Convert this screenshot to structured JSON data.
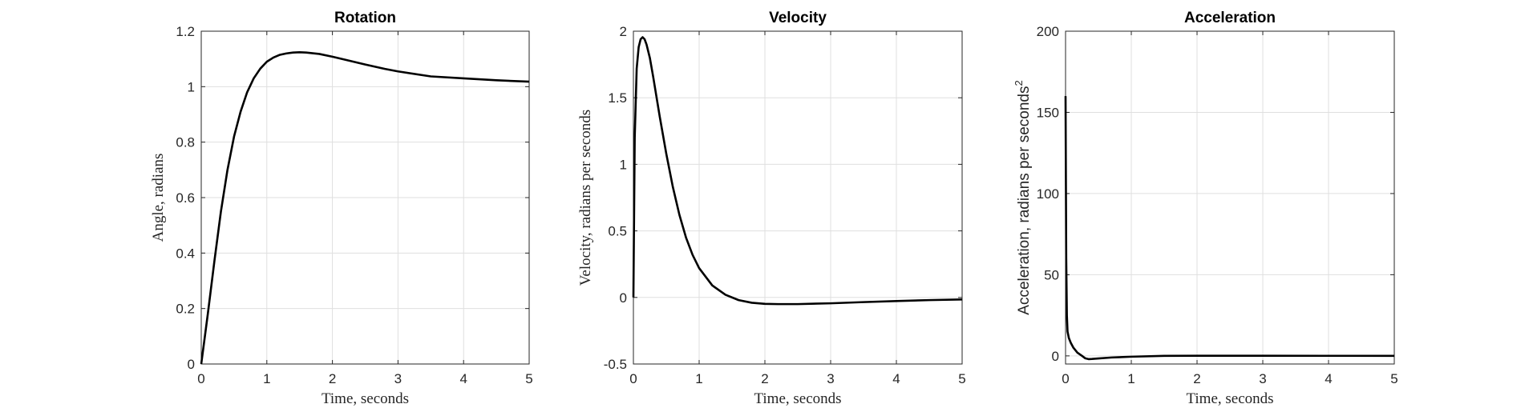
{
  "chart_data": [
    {
      "type": "line",
      "title": "Rotation",
      "xlabel": "Time, seconds",
      "ylabel": "Angle, radians",
      "xlim": [
        0,
        5
      ],
      "ylim": [
        0,
        1.2
      ],
      "xticks": [
        0,
        1,
        2,
        3,
        4,
        5
      ],
      "yticks": [
        0,
        0.2,
        0.4,
        0.6,
        0.8,
        1,
        1.2
      ],
      "xtick_labels": [
        "0",
        "1",
        "2",
        "3",
        "4",
        "5"
      ],
      "ytick_labels": [
        "0",
        "0.2",
        "0.4",
        "0.6",
        "0.8",
        "1",
        "1.2"
      ],
      "grid": true,
      "series": [
        {
          "color": "#000000",
          "x": [
            0,
            0.1,
            0.2,
            0.3,
            0.4,
            0.5,
            0.6,
            0.7,
            0.8,
            0.9,
            1.0,
            1.1,
            1.2,
            1.3,
            1.4,
            1.5,
            1.6,
            1.8,
            2.0,
            2.2,
            2.5,
            2.8,
            3.0,
            3.5,
            4.0,
            4.5,
            5.0
          ],
          "y": [
            0,
            0.18,
            0.37,
            0.55,
            0.7,
            0.82,
            0.91,
            0.98,
            1.03,
            1.065,
            1.09,
            1.105,
            1.115,
            1.12,
            1.123,
            1.124,
            1.123,
            1.118,
            1.108,
            1.097,
            1.08,
            1.064,
            1.055,
            1.037,
            1.03,
            1.023,
            1.018
          ]
        }
      ]
    },
    {
      "type": "line",
      "title": "Velocity",
      "xlabel": "Time, seconds",
      "ylabel": "Velocity, radians per seconds",
      "xlim": [
        0,
        5
      ],
      "ylim": [
        -0.5,
        2
      ],
      "xticks": [
        0,
        1,
        2,
        3,
        4,
        5
      ],
      "yticks": [
        -0.5,
        0,
        0.5,
        1,
        1.5,
        2
      ],
      "xtick_labels": [
        "0",
        "1",
        "2",
        "3",
        "4",
        "5"
      ],
      "ytick_labels": [
        "-0.5",
        "0",
        "0.5",
        "1",
        "1.5",
        "2"
      ],
      "grid": true,
      "series": [
        {
          "color": "#000000",
          "x": [
            0,
            0.02,
            0.05,
            0.08,
            0.11,
            0.14,
            0.17,
            0.2,
            0.25,
            0.3,
            0.4,
            0.5,
            0.6,
            0.7,
            0.8,
            0.9,
            1.0,
            1.2,
            1.4,
            1.6,
            1.8,
            2.0,
            2.2,
            2.5,
            3.0,
            3.5,
            4.0,
            4.5,
            5.0
          ],
          "y": [
            0,
            1.2,
            1.72,
            1.88,
            1.94,
            1.955,
            1.94,
            1.9,
            1.8,
            1.66,
            1.36,
            1.08,
            0.83,
            0.62,
            0.45,
            0.32,
            0.22,
            0.09,
            0.02,
            -0.02,
            -0.04,
            -0.048,
            -0.05,
            -0.05,
            -0.044,
            -0.035,
            -0.027,
            -0.02,
            -0.015
          ]
        }
      ]
    },
    {
      "type": "line",
      "title": "Acceleration",
      "xlabel": "Time, seconds",
      "ylabel": "Acceleration, radians per seconds",
      "ylabel_superscript": "2",
      "xlim": [
        0,
        5
      ],
      "ylim": [
        -5,
        200
      ],
      "xticks": [
        0,
        1,
        2,
        3,
        4,
        5
      ],
      "yticks": [
        0,
        50,
        100,
        150,
        200
      ],
      "xtick_labels": [
        "0",
        "1",
        "2",
        "3",
        "4",
        "5"
      ],
      "ytick_labels": [
        "0",
        "50",
        "100",
        "150",
        "200"
      ],
      "grid": true,
      "series": [
        {
          "color": "#000000",
          "x": [
            0,
            0.01,
            0.02,
            0.03,
            0.05,
            0.08,
            0.12,
            0.18,
            0.25,
            0.3,
            0.35,
            0.4,
            0.5,
            0.7,
            1.0,
            1.5,
            2.0,
            3.0,
            4.0,
            5.0
          ],
          "y": [
            160,
            60,
            25,
            15,
            11,
            8,
            5,
            2,
            0,
            -1.5,
            -2,
            -1.9,
            -1.6,
            -1.0,
            -0.5,
            0,
            0.1,
            0.1,
            0.05,
            0
          ]
        }
      ]
    }
  ]
}
